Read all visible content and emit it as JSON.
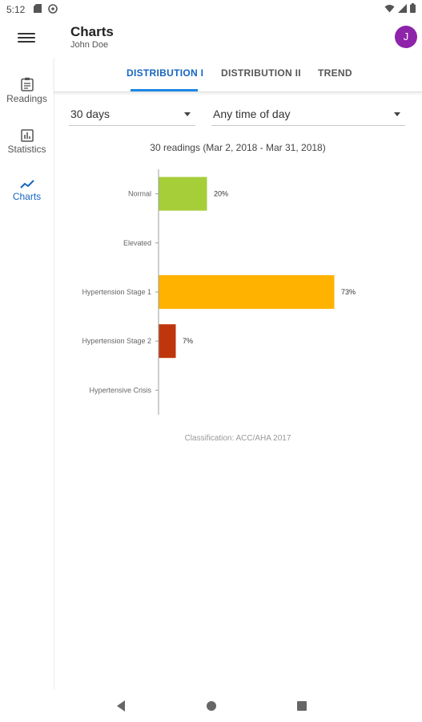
{
  "status": {
    "time": "5:12"
  },
  "app": {
    "title": "Charts",
    "subtitle": "John Doe",
    "avatar_initial": "J"
  },
  "colors": {
    "accent": "#1565c0",
    "avatar": "#8e24aa"
  },
  "nav": {
    "items": [
      {
        "label": "Readings",
        "icon": "clipboard-icon",
        "active": false
      },
      {
        "label": "Statistics",
        "icon": "bar-chart-icon",
        "active": false
      },
      {
        "label": "Charts",
        "icon": "trending-line-icon",
        "active": true
      }
    ]
  },
  "tabs": [
    {
      "label": "DISTRIBUTION I",
      "active": true
    },
    {
      "label": "DISTRIBUTION II",
      "active": false
    },
    {
      "label": "TREND",
      "active": false
    }
  ],
  "filters": {
    "period": {
      "value": "30 days"
    },
    "time_of_day": {
      "value": "Any time of day"
    }
  },
  "summary": "30 readings (Mar 2, 2018 - Mar 31, 2018)",
  "chart_data": {
    "type": "bar",
    "orientation": "horizontal",
    "categories": [
      "Normal",
      "Elevated",
      "Hypertension Stage 1",
      "Hypertension Stage 2",
      "Hypertensive Crisis"
    ],
    "values": [
      20,
      0,
      73,
      7,
      0
    ],
    "value_labels": [
      "20%",
      "",
      "73%",
      "7%",
      ""
    ],
    "colors": [
      "#a6ce39",
      "#ffd54f",
      "#ffb300",
      "#bf360c",
      "#b71c1c"
    ],
    "xlim": [
      0,
      100
    ],
    "grid": false
  },
  "footnote": "Classification: ACC/AHA 2017"
}
